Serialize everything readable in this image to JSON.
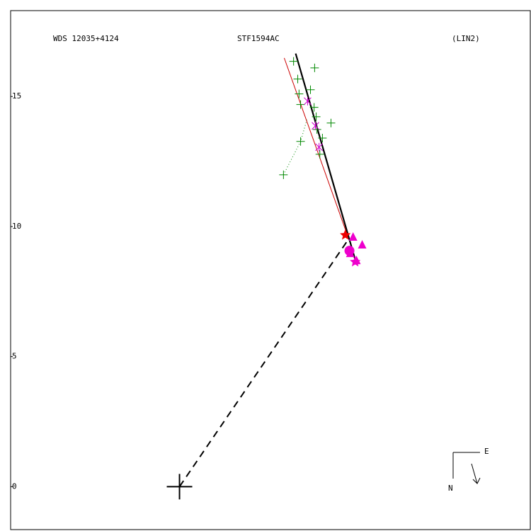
{
  "chart_data": {
    "type": "scatter",
    "texts": [
      "WDS 12035+4124",
      "STF1594AC",
      "(LIN2)"
    ],
    "compass": [
      "E",
      "N"
    ],
    "xlim": [
      -6.5,
      13.5
    ],
    "ylim": [
      -1.65,
      18.3
    ],
    "yticks": [
      0,
      5,
      10,
      15
    ],
    "grid": false,
    "primary": {
      "x": 0,
      "y": 0
    },
    "lines": [
      {
        "color": "#000000",
        "style": "thick",
        "x": [
          4.47,
          6.81
        ],
        "y": [
          16.65,
          8.56
        ]
      },
      {
        "color": "#cc0000",
        "style": "thin",
        "x": [
          4.03,
          6.46
        ],
        "y": [
          16.48,
          9.67
        ]
      },
      {
        "color": "#000000",
        "style": "dashed",
        "x": [
          0,
          6.46
        ],
        "y": [
          0,
          9.45
        ]
      },
      {
        "color": "#008800",
        "style": "dotted",
        "x": [
          4.0,
          4.66,
          4.9
        ],
        "y": [
          11.99,
          13.27,
          14.1
        ]
      }
    ],
    "series": [
      {
        "marker": "plus",
        "color": "#008800",
        "x": [
          4.39,
          5.2,
          4.55,
          5.04,
          4.6,
          4.66,
          5.18,
          5.26,
          5.83,
          5.29,
          5.5,
          4.66,
          5.4,
          4.0
        ],
        "y": [
          16.35,
          16.1,
          15.67,
          15.26,
          15.1,
          14.69,
          14.58,
          14.22,
          13.98,
          13.73,
          13.4,
          13.27,
          12.78,
          11.99
        ]
      },
      {
        "marker": "cross",
        "color": "#cc00cc",
        "x": [
          4.93,
          5.23,
          5.37
        ],
        "y": [
          14.82,
          13.87,
          13.05
        ]
      },
      {
        "marker": "triangle",
        "color": "#ee00cc",
        "x": [
          6.68,
          7.03,
          6.57,
          6.81
        ],
        "y": [
          9.59,
          9.29,
          8.96,
          8.69
        ]
      },
      {
        "marker": "circle",
        "color": "#ee00cc",
        "x": [
          6.54
        ],
        "y": [
          9.07
        ]
      },
      {
        "marker": "star",
        "color": "#ee0000",
        "x": [
          6.38
        ],
        "y": [
          9.67
        ]
      },
      {
        "marker": "star",
        "color": "#ee00cc",
        "x": [
          6.76
        ],
        "y": [
          8.64
        ]
      }
    ]
  }
}
